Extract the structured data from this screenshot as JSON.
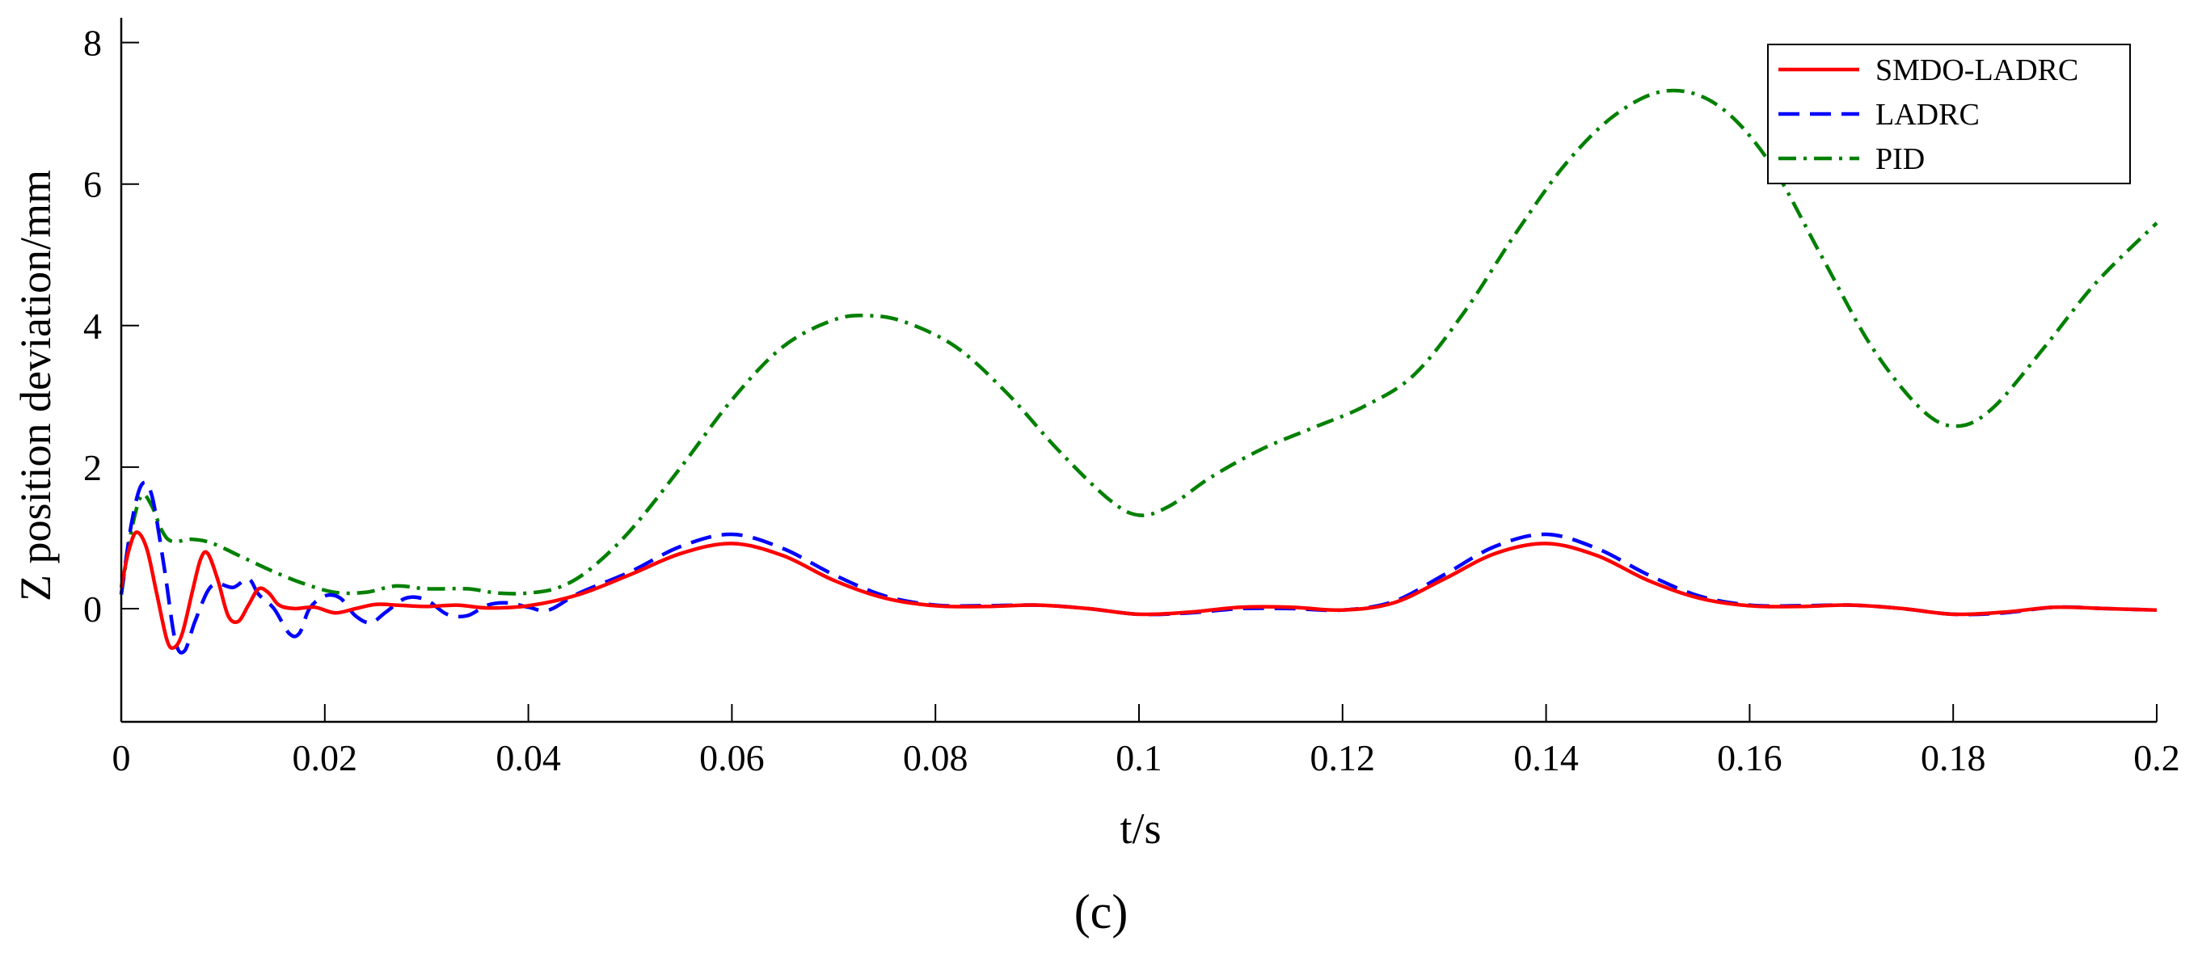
{
  "chart_data": {
    "type": "line",
    "xlabel": "t/s",
    "ylabel": "Z position deviation/mm",
    "xlim": [
      0,
      0.2
    ],
    "ylim": [
      -1.6,
      8.35
    ],
    "xticks": [
      "0",
      "0.02",
      "0.04",
      "0.06",
      "0.08",
      "0.1",
      "0.12",
      "0.14",
      "0.16",
      "0.18",
      "0.2"
    ],
    "xtick_values": [
      0,
      0.02,
      0.04,
      0.06,
      0.08,
      0.1,
      0.12,
      0.14,
      0.16,
      0.18,
      0.2
    ],
    "yticks": [
      "0",
      "2",
      "4",
      "6",
      "8"
    ],
    "ytick_values": [
      0,
      2,
      4,
      6,
      8
    ],
    "grid": false,
    "legend_position": "top-right",
    "caption": "(c)",
    "series": [
      {
        "name": "SMDO-LADRC",
        "color": "#ff0000",
        "dash": "solid",
        "points": [
          [
            0,
            0.3
          ],
          [
            0.0007,
            0.8
          ],
          [
            0.0015,
            1.08
          ],
          [
            0.0025,
            0.85
          ],
          [
            0.0035,
            0.2
          ],
          [
            0.0045,
            -0.45
          ],
          [
            0.0052,
            -0.55
          ],
          [
            0.006,
            -0.35
          ],
          [
            0.007,
            0.25
          ],
          [
            0.0078,
            0.7
          ],
          [
            0.0085,
            0.78
          ],
          [
            0.0095,
            0.4
          ],
          [
            0.0105,
            -0.1
          ],
          [
            0.0115,
            -0.18
          ],
          [
            0.0125,
            0.05
          ],
          [
            0.0135,
            0.28
          ],
          [
            0.0145,
            0.22
          ],
          [
            0.0155,
            0.05
          ],
          [
            0.017,
            0.0
          ],
          [
            0.019,
            0.02
          ],
          [
            0.021,
            -0.06
          ],
          [
            0.023,
            0.0
          ],
          [
            0.025,
            0.06
          ],
          [
            0.027,
            0.05
          ],
          [
            0.03,
            0.03
          ],
          [
            0.033,
            0.05
          ],
          [
            0.036,
            0.01
          ],
          [
            0.04,
            0.04
          ],
          [
            0.045,
            0.2
          ],
          [
            0.05,
            0.48
          ],
          [
            0.055,
            0.78
          ],
          [
            0.06,
            0.92
          ],
          [
            0.065,
            0.75
          ],
          [
            0.07,
            0.4
          ],
          [
            0.075,
            0.15
          ],
          [
            0.08,
            0.04
          ],
          [
            0.085,
            0.03
          ],
          [
            0.09,
            0.05
          ],
          [
            0.095,
            0.0
          ],
          [
            0.1,
            -0.08
          ],
          [
            0.105,
            -0.05
          ],
          [
            0.11,
            0.02
          ],
          [
            0.115,
            0.02
          ],
          [
            0.12,
            -0.02
          ],
          [
            0.125,
            0.08
          ],
          [
            0.13,
            0.42
          ],
          [
            0.135,
            0.78
          ],
          [
            0.14,
            0.92
          ],
          [
            0.145,
            0.75
          ],
          [
            0.15,
            0.4
          ],
          [
            0.155,
            0.15
          ],
          [
            0.16,
            0.04
          ],
          [
            0.165,
            0.03
          ],
          [
            0.17,
            0.05
          ],
          [
            0.175,
            0.0
          ],
          [
            0.18,
            -0.08
          ],
          [
            0.185,
            -0.05
          ],
          [
            0.19,
            0.02
          ],
          [
            0.195,
            0.0
          ],
          [
            0.2,
            -0.02
          ]
        ]
      },
      {
        "name": "LADRC",
        "color": "#0000ff",
        "dash": "dashed",
        "points": [
          [
            0,
            0.2
          ],
          [
            0.001,
            1.2
          ],
          [
            0.002,
            1.75
          ],
          [
            0.003,
            1.6
          ],
          [
            0.0042,
            0.6
          ],
          [
            0.0053,
            -0.45
          ],
          [
            0.0062,
            -0.6
          ],
          [
            0.0072,
            -0.2
          ],
          [
            0.0085,
            0.25
          ],
          [
            0.0095,
            0.35
          ],
          [
            0.011,
            0.3
          ],
          [
            0.0125,
            0.42
          ],
          [
            0.0135,
            0.2
          ],
          [
            0.015,
            0.0
          ],
          [
            0.0165,
            -0.35
          ],
          [
            0.0175,
            -0.35
          ],
          [
            0.0185,
            0.0
          ],
          [
            0.02,
            0.18
          ],
          [
            0.0215,
            0.15
          ],
          [
            0.023,
            -0.1
          ],
          [
            0.0245,
            -0.2
          ],
          [
            0.026,
            -0.05
          ],
          [
            0.028,
            0.15
          ],
          [
            0.03,
            0.12
          ],
          [
            0.032,
            -0.08
          ],
          [
            0.034,
            -0.1
          ],
          [
            0.036,
            0.05
          ],
          [
            0.038,
            0.08
          ],
          [
            0.04,
            0.02
          ],
          [
            0.042,
            -0.02
          ],
          [
            0.045,
            0.22
          ],
          [
            0.05,
            0.52
          ],
          [
            0.055,
            0.88
          ],
          [
            0.06,
            1.05
          ],
          [
            0.065,
            0.85
          ],
          [
            0.07,
            0.48
          ],
          [
            0.075,
            0.18
          ],
          [
            0.08,
            0.05
          ],
          [
            0.085,
            0.04
          ],
          [
            0.09,
            0.05
          ],
          [
            0.095,
            0.0
          ],
          [
            0.1,
            -0.08
          ],
          [
            0.105,
            -0.06
          ],
          [
            0.11,
            0.0
          ],
          [
            0.115,
            0.0
          ],
          [
            0.12,
            -0.02
          ],
          [
            0.125,
            0.1
          ],
          [
            0.13,
            0.48
          ],
          [
            0.135,
            0.88
          ],
          [
            0.14,
            1.05
          ],
          [
            0.145,
            0.85
          ],
          [
            0.15,
            0.48
          ],
          [
            0.155,
            0.18
          ],
          [
            0.16,
            0.05
          ],
          [
            0.165,
            0.04
          ],
          [
            0.17,
            0.05
          ],
          [
            0.175,
            0.0
          ],
          [
            0.18,
            -0.08
          ],
          [
            0.185,
            -0.06
          ],
          [
            0.19,
            0.02
          ],
          [
            0.195,
            0.0
          ],
          [
            0.2,
            -0.02
          ]
        ]
      },
      {
        "name": "PID",
        "color": "#008000",
        "dash": "dash-dot",
        "points": [
          [
            0,
            0.2
          ],
          [
            0.001,
            1.1
          ],
          [
            0.002,
            1.6
          ],
          [
            0.003,
            1.45
          ],
          [
            0.004,
            1.1
          ],
          [
            0.005,
            0.95
          ],
          [
            0.007,
            0.98
          ],
          [
            0.009,
            0.92
          ],
          [
            0.012,
            0.72
          ],
          [
            0.015,
            0.52
          ],
          [
            0.018,
            0.35
          ],
          [
            0.021,
            0.23
          ],
          [
            0.024,
            0.23
          ],
          [
            0.027,
            0.32
          ],
          [
            0.03,
            0.28
          ],
          [
            0.034,
            0.28
          ],
          [
            0.037,
            0.22
          ],
          [
            0.04,
            0.22
          ],
          [
            0.043,
            0.3
          ],
          [
            0.046,
            0.55
          ],
          [
            0.05,
            1.1
          ],
          [
            0.055,
            2.0
          ],
          [
            0.06,
            2.95
          ],
          [
            0.065,
            3.7
          ],
          [
            0.07,
            4.08
          ],
          [
            0.0735,
            4.14
          ],
          [
            0.077,
            4.05
          ],
          [
            0.082,
            3.7
          ],
          [
            0.087,
            3.05
          ],
          [
            0.092,
            2.25
          ],
          [
            0.097,
            1.55
          ],
          [
            0.1,
            1.32
          ],
          [
            0.103,
            1.45
          ],
          [
            0.107,
            1.85
          ],
          [
            0.112,
            2.25
          ],
          [
            0.117,
            2.55
          ],
          [
            0.122,
            2.85
          ],
          [
            0.127,
            3.3
          ],
          [
            0.132,
            4.2
          ],
          [
            0.137,
            5.3
          ],
          [
            0.142,
            6.3
          ],
          [
            0.147,
            7.0
          ],
          [
            0.152,
            7.32
          ],
          [
            0.157,
            7.1
          ],
          [
            0.162,
            6.3
          ],
          [
            0.167,
            5.0
          ],
          [
            0.172,
            3.7
          ],
          [
            0.177,
            2.8
          ],
          [
            0.1805,
            2.58
          ],
          [
            0.184,
            2.85
          ],
          [
            0.189,
            3.7
          ],
          [
            0.194,
            4.6
          ],
          [
            0.2,
            5.45
          ]
        ]
      }
    ]
  }
}
